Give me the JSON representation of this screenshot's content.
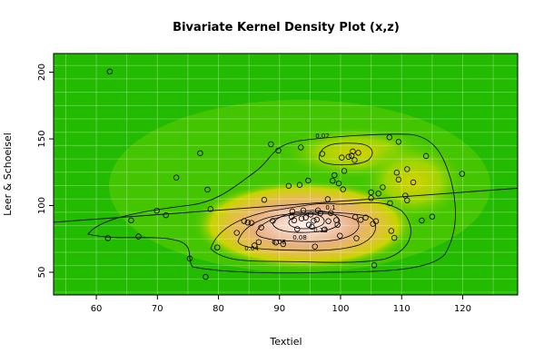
{
  "chart_data": {
    "type": "scatter",
    "title": "Bivariate Kernel Density Plot (x,z)",
    "xlabel": "Textiel",
    "ylabel": "Leer & Schoeisel",
    "xlim": [
      53,
      129
    ],
    "ylim": [
      33,
      214
    ],
    "x_ticks": [
      60,
      70,
      80,
      90,
      100,
      110,
      120
    ],
    "y_ticks": [
      50,
      100,
      150,
      200
    ],
    "grid": true,
    "background": "kernel density heat map (green = low, red/white = high)",
    "contour_labels": [
      "0.02",
      "0.04",
      "0.06",
      "0.08",
      "0.1",
      "0.12"
    ],
    "regression_line": {
      "x": [
        53,
        129
      ],
      "y": [
        87.5,
        113
      ]
    },
    "points": [
      {
        "x": 62.2,
        "y": 200.5
      },
      {
        "x": 61.9,
        "y": 75.6
      },
      {
        "x": 65.7,
        "y": 88.9
      },
      {
        "x": 66.9,
        "y": 76.8
      },
      {
        "x": 69.9,
        "y": 96.2
      },
      {
        "x": 71.4,
        "y": 92.8
      },
      {
        "x": 73.1,
        "y": 121.0
      },
      {
        "x": 75.3,
        "y": 60.3
      },
      {
        "x": 77.0,
        "y": 139.3
      },
      {
        "x": 77.9,
        "y": 46.5
      },
      {
        "x": 78.2,
        "y": 112.0
      },
      {
        "x": 78.7,
        "y": 97.4
      },
      {
        "x": 79.8,
        "y": 68.6
      },
      {
        "x": 83.0,
        "y": 79.6
      },
      {
        "x": 84.2,
        "y": 88.4
      },
      {
        "x": 84.8,
        "y": 87.3
      },
      {
        "x": 85.4,
        "y": 87.0
      },
      {
        "x": 85.9,
        "y": 70.1
      },
      {
        "x": 86.6,
        "y": 72.6
      },
      {
        "x": 87.0,
        "y": 83.6
      },
      {
        "x": 87.5,
        "y": 104.3
      },
      {
        "x": 88.6,
        "y": 146.0
      },
      {
        "x": 88.9,
        "y": 88.6
      },
      {
        "x": 89.4,
        "y": 72.3
      },
      {
        "x": 89.8,
        "y": 141.2
      },
      {
        "x": 90.6,
        "y": 71.1
      },
      {
        "x": 91.5,
        "y": 114.8
      },
      {
        "x": 92.0,
        "y": 91.6
      },
      {
        "x": 92.1,
        "y": 95.6
      },
      {
        "x": 92.4,
        "y": 88.9
      },
      {
        "x": 92.9,
        "y": 82.4
      },
      {
        "x": 93.3,
        "y": 115.5
      },
      {
        "x": 93.6,
        "y": 90.3
      },
      {
        "x": 93.5,
        "y": 143.6
      },
      {
        "x": 93.9,
        "y": 96.4
      },
      {
        "x": 94.3,
        "y": 91.0
      },
      {
        "x": 94.7,
        "y": 118.8
      },
      {
        "x": 94.8,
        "y": 85.6
      },
      {
        "x": 95.1,
        "y": 93.3
      },
      {
        "x": 95.3,
        "y": 84.1
      },
      {
        "x": 95.6,
        "y": 88.6
      },
      {
        "x": 95.8,
        "y": 69.3
      },
      {
        "x": 96.1,
        "y": 89.5
      },
      {
        "x": 96.3,
        "y": 96.4
      },
      {
        "x": 96.7,
        "y": 94.3
      },
      {
        "x": 97.0,
        "y": 138.8
      },
      {
        "x": 97.4,
        "y": 82.1
      },
      {
        "x": 97.9,
        "y": 104.8
      },
      {
        "x": 98.0,
        "y": 88.3
      },
      {
        "x": 98.4,
        "y": 94.4
      },
      {
        "x": 98.7,
        "y": 118.6
      },
      {
        "x": 99.0,
        "y": 122.8
      },
      {
        "x": 99.3,
        "y": 89.1
      },
      {
        "x": 99.5,
        "y": 85.6
      },
      {
        "x": 99.7,
        "y": 116.6
      },
      {
        "x": 99.9,
        "y": 77.4
      },
      {
        "x": 100.2,
        "y": 136.0
      },
      {
        "x": 100.4,
        "y": 112.2
      },
      {
        "x": 100.6,
        "y": 126.0
      },
      {
        "x": 101.3,
        "y": 136.6
      },
      {
        "x": 101.8,
        "y": 137.4
      },
      {
        "x": 102.0,
        "y": 140.6
      },
      {
        "x": 102.3,
        "y": 134.1
      },
      {
        "x": 102.4,
        "y": 91.4
      },
      {
        "x": 102.6,
        "y": 75.5
      },
      {
        "x": 102.9,
        "y": 139.6
      },
      {
        "x": 103.3,
        "y": 89.3
      },
      {
        "x": 104.1,
        "y": 91.0
      },
      {
        "x": 105.0,
        "y": 109.9
      },
      {
        "x": 105.0,
        "y": 105.6
      },
      {
        "x": 105.3,
        "y": 86.3
      },
      {
        "x": 105.8,
        "y": 88.3
      },
      {
        "x": 105.5,
        "y": 55.3
      },
      {
        "x": 106.2,
        "y": 109.0
      },
      {
        "x": 106.9,
        "y": 113.7
      },
      {
        "x": 108.0,
        "y": 151.2
      },
      {
        "x": 108.1,
        "y": 101.8
      },
      {
        "x": 108.3,
        "y": 81.0
      },
      {
        "x": 108.8,
        "y": 75.8
      },
      {
        "x": 109.2,
        "y": 124.7
      },
      {
        "x": 109.5,
        "y": 147.8
      },
      {
        "x": 109.5,
        "y": 119.5
      },
      {
        "x": 110.6,
        "y": 107.5
      },
      {
        "x": 110.9,
        "y": 103.9
      },
      {
        "x": 110.9,
        "y": 127.3
      },
      {
        "x": 111.9,
        "y": 117.4
      },
      {
        "x": 113.3,
        "y": 88.8
      },
      {
        "x": 114.0,
        "y": 137.2
      },
      {
        "x": 115.0,
        "y": 91.7
      },
      {
        "x": 119.9,
        "y": 123.8
      }
    ]
  }
}
